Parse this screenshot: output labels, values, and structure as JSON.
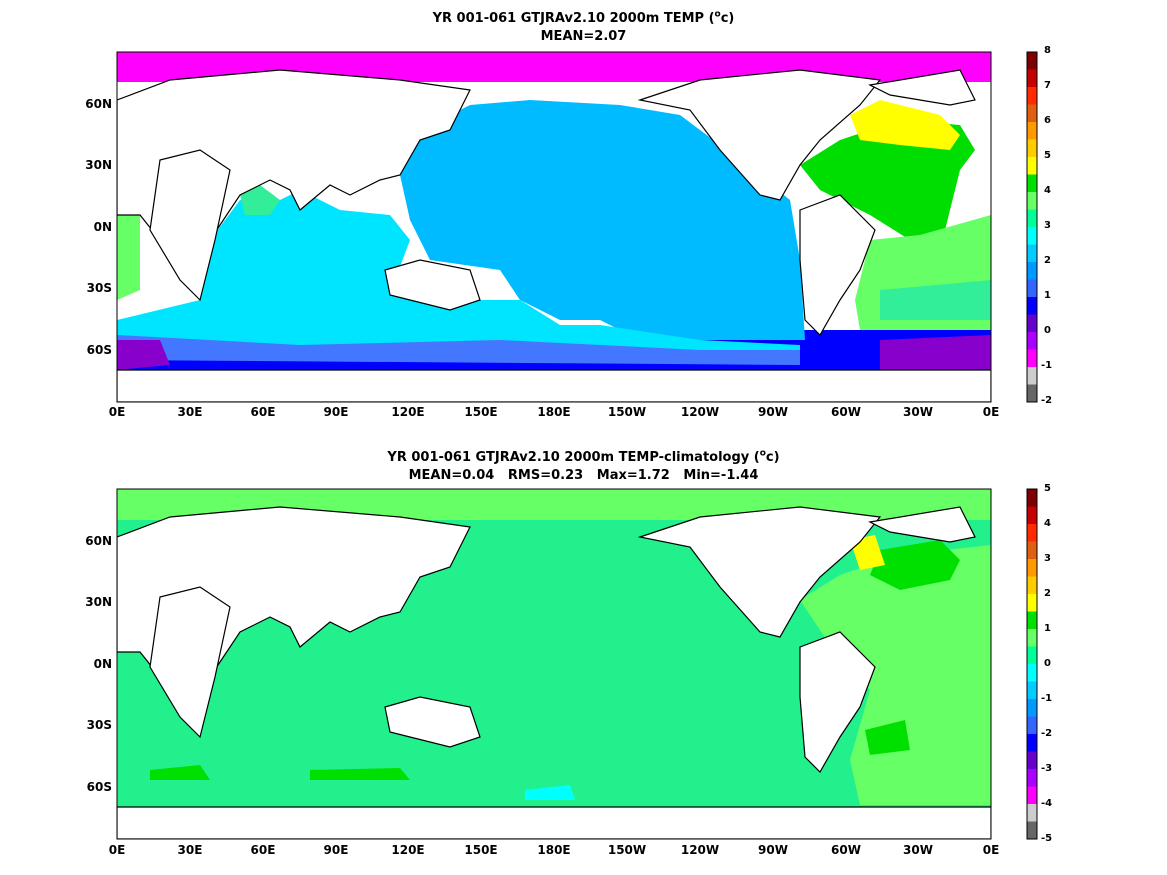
{
  "panels": [
    {
      "title_line1_pre": "YR 001-061 GTJRAv2.10 2000m TEMP (",
      "title_unit_sup": "o",
      "title_unit": "c",
      "title_line1_post": ")",
      "title_line2": "MEAN=2.07",
      "y_ticks": [
        "60N",
        "30N",
        "0N",
        "30S",
        "60S"
      ],
      "x_ticks": [
        "0E",
        "30E",
        "60E",
        "90E",
        "120E",
        "150E",
        "180E",
        "150W",
        "120W",
        "90W",
        "60W",
        "30W",
        "0E"
      ],
      "colorbar_labels": [
        "8",
        "7",
        "6",
        "5",
        "4",
        "3",
        "2",
        "1",
        "0",
        "-1",
        "-2"
      ],
      "colorbar_colors": [
        "#7f0000",
        "#c40000",
        "#ff2a00",
        "#e05f10",
        "#ff9900",
        "#ffcc00",
        "#ffff00",
        "#00e000",
        "#66ff66",
        "#00ff99",
        "#00ffff",
        "#00ccff",
        "#0099ff",
        "#3366ff",
        "#0000ff",
        "#6600cc",
        "#aa00ff",
        "#ff00ff",
        "#cccccc",
        "#666666"
      ],
      "field_colors": {
        "north_polar": "#ff00ff",
        "pacific": "#00bbff",
        "indian": "#00e5ff",
        "arabian": "#33ee99",
        "south_ocean_band1": "#00e5ff",
        "south_ocean_band2": "#4477ff",
        "south_ocean_band3": "#0000ff",
        "weddell": "#8800cc",
        "atlantic_north": "#00dd00",
        "atlantic_subtrop": "#ffff00",
        "atlantic_south": "#66ff66",
        "atlantic_south_deep": "#33ee99",
        "land": "#ffffff"
      }
    },
    {
      "title_line1_pre": "YR 001-061 GTJRAv2.10 2000m TEMP-climatology (",
      "title_unit_sup": "o",
      "title_unit": "c",
      "title_line1_post": ")",
      "title_line2": "MEAN=0.04   RMS=0.23   Max=1.72   Min=-1.44",
      "y_ticks": [
        "60N",
        "30N",
        "0N",
        "30S",
        "60S"
      ],
      "x_ticks": [
        "0E",
        "30E",
        "60E",
        "90E",
        "120E",
        "150E",
        "180E",
        "150W",
        "120W",
        "90W",
        "60W",
        "30W",
        "0E"
      ],
      "colorbar_labels": [
        "5",
        "4",
        "3",
        "2",
        "1",
        "0",
        "-1",
        "-2",
        "-3",
        "-4",
        "-5"
      ],
      "colorbar_colors": [
        "#7f0000",
        "#c40000",
        "#ff2a00",
        "#e05f10",
        "#ff9900",
        "#ffcc00",
        "#ffff00",
        "#00e000",
        "#66ff66",
        "#00ff99",
        "#00ffff",
        "#00ccff",
        "#0099ff",
        "#3366ff",
        "#0000ff",
        "#6600cc",
        "#aa00ff",
        "#ff00ff",
        "#cccccc",
        "#666666"
      ],
      "field_colors": {
        "base": "#22f08c",
        "atlantic": "#66ff66",
        "bright_green": "#00e000",
        "yellow": "#ffff00",
        "cyan": "#00ffff",
        "land": "#ffffff"
      }
    }
  ]
}
